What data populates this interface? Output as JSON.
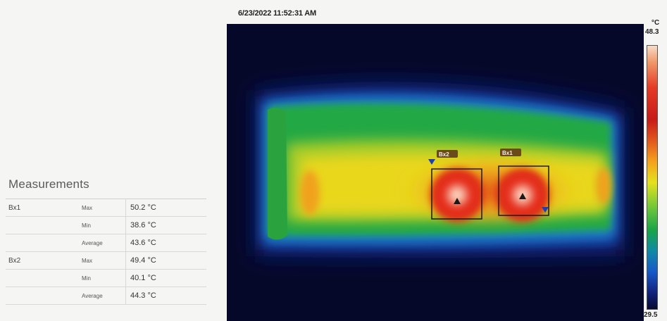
{
  "timestamp": "6/23/2022 11:52:31 AM",
  "measurements": {
    "title": "Measurements",
    "boxes": [
      {
        "name": "Bx1",
        "rows": [
          {
            "stat": "Max",
            "value": "50.2 °C"
          },
          {
            "stat": "Min",
            "value": "38.6 °C"
          },
          {
            "stat": "Average",
            "value": "43.6 °C"
          }
        ]
      },
      {
        "name": "Bx2",
        "rows": [
          {
            "stat": "Max",
            "value": "49.4 °C"
          },
          {
            "stat": "Min",
            "value": "40.1 °C"
          },
          {
            "stat": "Average",
            "value": "44.3 °C"
          }
        ]
      }
    ]
  },
  "scale": {
    "unit": "°C",
    "max": "48.3",
    "min": "29.5"
  },
  "image_boxes": [
    {
      "label": "Bx2",
      "marker": "hotspot-triangle"
    },
    {
      "label": "Bx1",
      "marker": "hotspot-triangle"
    }
  ],
  "colors": {
    "background": "#06082a",
    "hot": "#e4231b",
    "warm": "#f4a21b",
    "mid": "#e4e11e",
    "cool": "#18a548",
    "cold": "#1758c8"
  }
}
